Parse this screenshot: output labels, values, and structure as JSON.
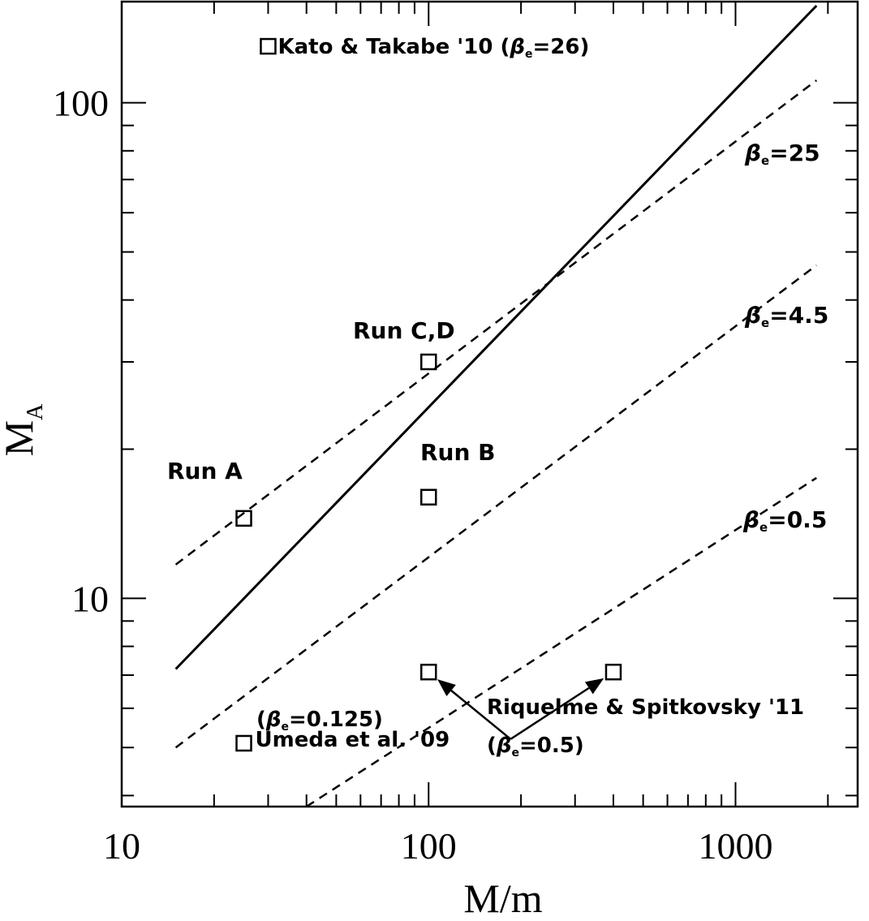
{
  "chart_data": {
    "type": "scatter",
    "title": "",
    "xlabel": "M/m",
    "ylabel_main": "M",
    "ylabel_sub": "A",
    "xscale": "log",
    "yscale": "log",
    "xlim": [
      10,
      2500
    ],
    "ylim": [
      3.8,
      160
    ],
    "grid": false,
    "x_tick_labels": [
      "10",
      "100",
      "1000"
    ],
    "y_tick_labels": [
      "10",
      "100"
    ],
    "x_major_ticks": [
      10,
      100,
      1000
    ],
    "y_major_ticks": [
      10,
      100
    ],
    "lines": [
      {
        "style": "solid",
        "x": [
          15,
          1836
        ],
        "y": [
          7.2,
          157
        ]
      },
      {
        "style": "dashed",
        "label_prefix": "β",
        "label_sub": "e",
        "label_suffix": "=25",
        "x": [
          15,
          1836
        ],
        "y": [
          11.7,
          111
        ]
      },
      {
        "style": "dashed",
        "label_prefix": "β",
        "label_sub": "e",
        "label_suffix": "=4.5",
        "x": [
          15,
          1836
        ],
        "y": [
          5.0,
          47
        ]
      },
      {
        "style": "dashed",
        "label_prefix": "β",
        "label_sub": "e",
        "label_suffix": "=0.5",
        "x": [
          40,
          1836
        ],
        "y": [
          3.8,
          17.5
        ]
      }
    ],
    "points": [
      {
        "x": 30,
        "y": 130,
        "label": "Kato & Takabe '10 (",
        "label_beta": "β",
        "label_sub": "e",
        "label_tail": "=26)"
      },
      {
        "x": 100,
        "y": 30,
        "label": "Run C,D"
      },
      {
        "x": 25,
        "y": 14.5,
        "label": "Run A"
      },
      {
        "x": 100,
        "y": 16,
        "label": "Run B"
      },
      {
        "x": 25,
        "y": 5.1,
        "label": "Umeda et al. '09",
        "label2_beta": "β",
        "label2_sub": "e",
        "label2_tail": "=0.125"
      },
      {
        "x": 100,
        "y": 7.1
      },
      {
        "x": 400,
        "y": 7.1
      }
    ],
    "riquelme_annotation": {
      "text": "Riquelme & Spitkovsky '11",
      "beta": "β",
      "sub": "e",
      "tail": "=0.5",
      "arrow_origin": [
        185,
        5.2
      ],
      "arrow_targets": [
        [
          100,
          7.1
        ],
        [
          400,
          7.1
        ]
      ]
    }
  }
}
